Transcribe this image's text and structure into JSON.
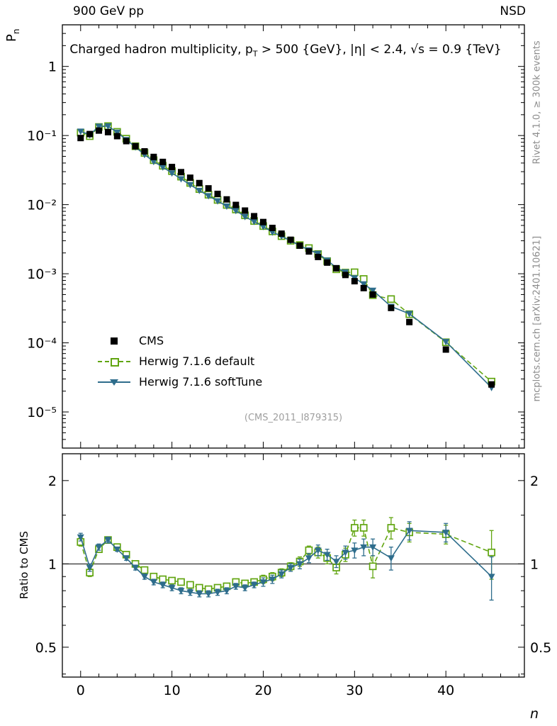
{
  "colors": {
    "cms": "#000000",
    "herwig_default": "#61a510",
    "herwig_soft": "#2e6d8c",
    "frame": "#000000",
    "gray_text": "#8c8c8c",
    "watermark": "#9f9f9f"
  },
  "header": {
    "left": "900 GeV pp",
    "right": "NSD"
  },
  "title_parts": {
    "prefix": "Charged hadron multiplicity, p",
    "sub": "T",
    "suffix": " > 500 {GeV}, |η| < 2.4, √s = 0.9 {TeV}"
  },
  "axis_labels": {
    "y_main_base": "P",
    "y_main_sub": "n",
    "y_ratio": "Ratio to CMS",
    "x": "n"
  },
  "side_notes": {
    "top_right": "Rivet 4.1.0, ≥ 300k events",
    "bottom_right": "mcplots.cern.ch [arXiv:2401.10621]"
  },
  "watermark": "(CMS_2011_I879315)",
  "legend": [
    {
      "label": "CMS",
      "marker": "square-filled",
      "color": "#000000",
      "line": "none"
    },
    {
      "label": "Herwig 7.1.6 default",
      "marker": "square-open",
      "color": "#61a510",
      "line": "dashed"
    },
    {
      "label": "Herwig 7.1.6 softTune",
      "marker": "triangle-filled",
      "color": "#2e6d8c",
      "line": "solid"
    }
  ],
  "chart_data": [
    {
      "type": "line",
      "title": "Charged hadron multiplicity, pT > 500 {GeV}, |η| < 2.4, √s = 0.9 {TeV}",
      "xlabel": "n",
      "ylabel": "P_n",
      "yscale": "log",
      "xlim": [
        -2,
        48.6
      ],
      "ylim": [
        3e-06,
        4
      ],
      "x_ticks": [
        0,
        10,
        20,
        30,
        40
      ],
      "y_ticks": [
        {
          "v": 1,
          "label": "1"
        },
        {
          "v": 0.1,
          "label": "10⁻¹"
        },
        {
          "v": 0.01,
          "label": "10⁻²"
        },
        {
          "v": 0.001,
          "label": "10⁻³"
        },
        {
          "v": 0.0001,
          "label": "10⁻⁴"
        },
        {
          "v": 1e-05,
          "label": "10⁻⁵"
        }
      ],
      "x": [
        0,
        1,
        2,
        3,
        4,
        5,
        6,
        7,
        8,
        9,
        10,
        11,
        12,
        13,
        14,
        15,
        16,
        17,
        18,
        19,
        20,
        21,
        22,
        23,
        24,
        25,
        26,
        27,
        28,
        29,
        30,
        31,
        32,
        34,
        36,
        40,
        45
      ],
      "series": [
        {
          "name": "CMS",
          "marker": "square-filled",
          "color": "#000000",
          "line": "none",
          "y": [
            0.092,
            0.105,
            0.118,
            0.112,
            0.098,
            0.083,
            0.07,
            0.059,
            0.049,
            0.0415,
            0.035,
            0.0295,
            0.0245,
            0.0205,
            0.0172,
            0.0143,
            0.0119,
            0.0099,
            0.0082,
            0.0068,
            0.0056,
            0.0046,
            0.0038,
            0.0031,
            0.00255,
            0.0021,
            0.00175,
            0.00145,
            0.0012,
            0.00096,
            0.00078,
            0.00062,
            0.0005,
            0.00032,
            0.0002,
            8e-05,
            2.5e-05
          ]
        },
        {
          "name": "Herwig 7.1.6 default",
          "marker": "square-open",
          "color": "#61a510",
          "line": "dashed",
          "y": [
            0.11,
            0.098,
            0.133,
            0.137,
            0.113,
            0.09,
            0.07,
            0.056,
            0.044,
            0.0365,
            0.0305,
            0.0254,
            0.0206,
            0.0168,
            0.0139,
            0.0117,
            0.0099,
            0.0085,
            0.007,
            0.0058,
            0.0049,
            0.0041,
            0.0035,
            0.003,
            0.0026,
            0.00235,
            0.00193,
            0.00152,
            0.00116,
            0.00104,
            0.00105,
            0.00084,
            0.00049,
            0.00043,
            0.00026,
            0.000102,
            2.75e-05
          ]
        },
        {
          "name": "Herwig 7.1.6 softTune",
          "marker": "triangle-filled",
          "color": "#2e6d8c",
          "line": "solid",
          "y": [
            0.115,
            0.102,
            0.136,
            0.137,
            0.111,
            0.087,
            0.068,
            0.053,
            0.042,
            0.0349,
            0.0287,
            0.0236,
            0.0194,
            0.016,
            0.0134,
            0.0113,
            0.0095,
            0.0082,
            0.0067,
            0.0057,
            0.0048,
            0.004,
            0.0035,
            0.003,
            0.00255,
            0.00221,
            0.00196,
            0.00157,
            0.00122,
            0.00106,
            0.00087,
            0.00071,
            0.000575,
            0.000336,
            0.000264,
            0.000104,
            2.25e-05
          ]
        }
      ]
    },
    {
      "type": "line",
      "title": "Ratio to CMS",
      "ylabel": "Ratio to CMS",
      "yscale": "log",
      "ylim": [
        0.39,
        2.5
      ],
      "refline": 1,
      "y_ticks": [
        {
          "v": 2,
          "label": "2"
        },
        {
          "v": 1,
          "label": "1"
        },
        {
          "v": 0.5,
          "label": "0.5"
        }
      ],
      "minor_ticks": [
        0.4,
        0.6,
        0.7,
        0.8,
        0.9,
        1.5
      ],
      "x": [
        0,
        1,
        2,
        3,
        4,
        5,
        6,
        7,
        8,
        9,
        10,
        11,
        12,
        13,
        14,
        15,
        16,
        17,
        18,
        19,
        20,
        21,
        22,
        23,
        24,
        25,
        26,
        27,
        28,
        29,
        30,
        31,
        32,
        34,
        36,
        40,
        45
      ],
      "series": [
        {
          "name": "Herwig 7.1.6 default",
          "marker": "square-open",
          "color": "#61a510",
          "line": "dashed",
          "y": [
            1.2,
            0.93,
            1.13,
            1.22,
            1.15,
            1.08,
            1.0,
            0.95,
            0.9,
            0.88,
            0.87,
            0.86,
            0.84,
            0.82,
            0.81,
            0.82,
            0.83,
            0.86,
            0.85,
            0.86,
            0.88,
            0.9,
            0.93,
            0.98,
            1.02,
            1.12,
            1.1,
            1.05,
            0.97,
            1.08,
            1.35,
            1.35,
            0.98,
            1.35,
            1.3,
            1.28,
            1.1
          ],
          "err": [
            0.04,
            0.03,
            0.03,
            0.03,
            0.02,
            0.02,
            0.02,
            0.02,
            0.02,
            0.02,
            0.02,
            0.02,
            0.02,
            0.02,
            0.02,
            0.02,
            0.02,
            0.02,
            0.02,
            0.02,
            0.03,
            0.03,
            0.03,
            0.03,
            0.04,
            0.04,
            0.05,
            0.05,
            0.05,
            0.06,
            0.09,
            0.09,
            0.09,
            0.12,
            0.1,
            0.1,
            0.22
          ]
        },
        {
          "name": "Herwig 7.1.6 softTune",
          "marker": "triangle-filled",
          "color": "#2e6d8c",
          "line": "solid",
          "y": [
            1.25,
            0.97,
            1.15,
            1.22,
            1.13,
            1.05,
            0.97,
            0.9,
            0.86,
            0.84,
            0.82,
            0.8,
            0.79,
            0.78,
            0.78,
            0.79,
            0.8,
            0.83,
            0.82,
            0.84,
            0.86,
            0.88,
            0.92,
            0.97,
            1.0,
            1.05,
            1.12,
            1.08,
            1.02,
            1.1,
            1.12,
            1.15,
            1.15,
            1.05,
            1.32,
            1.3,
            0.9
          ],
          "err": [
            0.04,
            0.03,
            0.03,
            0.03,
            0.02,
            0.02,
            0.02,
            0.02,
            0.02,
            0.02,
            0.02,
            0.02,
            0.02,
            0.02,
            0.02,
            0.02,
            0.02,
            0.02,
            0.02,
            0.02,
            0.03,
            0.03,
            0.03,
            0.03,
            0.04,
            0.04,
            0.05,
            0.05,
            0.05,
            0.06,
            0.07,
            0.08,
            0.08,
            0.1,
            0.1,
            0.1,
            0.16
          ]
        }
      ]
    }
  ]
}
